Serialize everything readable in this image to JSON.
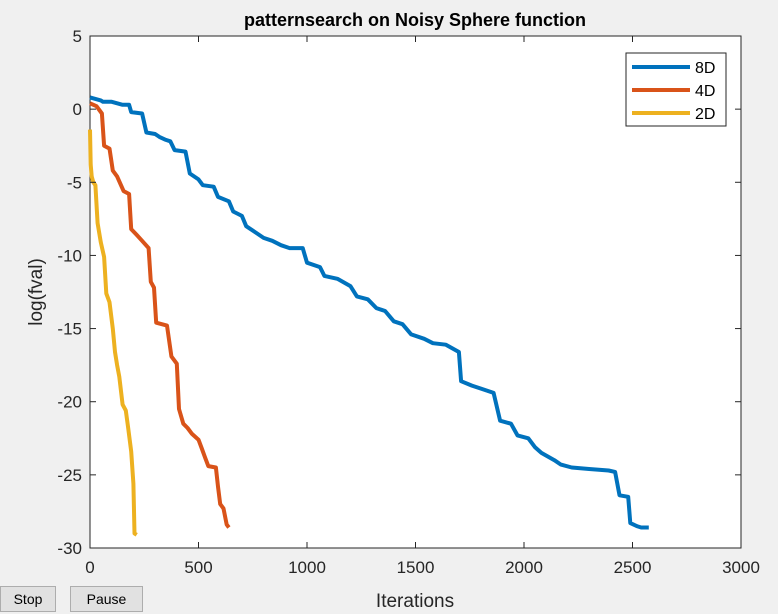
{
  "buttons": {
    "stop_label": "Stop",
    "pause_label": "Pause"
  },
  "chart_data": {
    "type": "line",
    "title": "patternsearch on Noisy Sphere function",
    "xlabel": "Iterations",
    "ylabel": "log(fval)",
    "xlim": [
      0,
      3000
    ],
    "ylim": [
      -30,
      5
    ],
    "xticks": [
      0,
      500,
      1000,
      1500,
      2000,
      2500,
      3000
    ],
    "yticks": [
      -30,
      -25,
      -20,
      -15,
      -10,
      -5,
      0,
      5
    ],
    "xtick_labels": [
      "0",
      "500",
      "1000",
      "1500",
      "2000",
      "2500",
      "3000"
    ],
    "ytick_labels": [
      "-30",
      "-25",
      "-20",
      "-15",
      "-10",
      "-5",
      "0",
      "5"
    ],
    "grid": false,
    "legend_position": "top-right",
    "series": [
      {
        "name": "8D",
        "color": "#0072bd",
        "points": [
          [
            0,
            0.8
          ],
          [
            50,
            0.6
          ],
          [
            60,
            0.5
          ],
          [
            100,
            0.5
          ],
          [
            150,
            0.3
          ],
          [
            180,
            0.3
          ],
          [
            190,
            -0.2
          ],
          [
            240,
            -0.3
          ],
          [
            260,
            -1.6
          ],
          [
            300,
            -1.7
          ],
          [
            320,
            -1.9
          ],
          [
            350,
            -2.1
          ],
          [
            370,
            -2.2
          ],
          [
            390,
            -2.8
          ],
          [
            440,
            -2.9
          ],
          [
            460,
            -4.4
          ],
          [
            500,
            -4.8
          ],
          [
            520,
            -5.2
          ],
          [
            570,
            -5.3
          ],
          [
            590,
            -6.0
          ],
          [
            640,
            -6.3
          ],
          [
            660,
            -7.0
          ],
          [
            700,
            -7.3
          ],
          [
            720,
            -8.0
          ],
          [
            760,
            -8.4
          ],
          [
            800,
            -8.8
          ],
          [
            840,
            -9.0
          ],
          [
            880,
            -9.3
          ],
          [
            920,
            -9.5
          ],
          [
            980,
            -9.5
          ],
          [
            1000,
            -10.5
          ],
          [
            1060,
            -10.8
          ],
          [
            1080,
            -11.4
          ],
          [
            1140,
            -11.6
          ],
          [
            1200,
            -12.1
          ],
          [
            1230,
            -12.8
          ],
          [
            1280,
            -13.0
          ],
          [
            1320,
            -13.6
          ],
          [
            1360,
            -13.8
          ],
          [
            1400,
            -14.5
          ],
          [
            1440,
            -14.7
          ],
          [
            1480,
            -15.4
          ],
          [
            1540,
            -15.7
          ],
          [
            1580,
            -16.0
          ],
          [
            1640,
            -16.1
          ],
          [
            1700,
            -16.6
          ],
          [
            1710,
            -18.6
          ],
          [
            1760,
            -18.9
          ],
          [
            1800,
            -19.1
          ],
          [
            1860,
            -19.4
          ],
          [
            1890,
            -21.3
          ],
          [
            1940,
            -21.5
          ],
          [
            1970,
            -22.3
          ],
          [
            2020,
            -22.5
          ],
          [
            2050,
            -23.1
          ],
          [
            2080,
            -23.5
          ],
          [
            2140,
            -24.0
          ],
          [
            2170,
            -24.3
          ],
          [
            2220,
            -24.5
          ],
          [
            2300,
            -24.6
          ],
          [
            2390,
            -24.7
          ],
          [
            2420,
            -24.8
          ],
          [
            2440,
            -26.4
          ],
          [
            2480,
            -26.5
          ],
          [
            2490,
            -28.3
          ],
          [
            2520,
            -28.5
          ],
          [
            2540,
            -28.6
          ],
          [
            2575,
            -28.6
          ]
        ]
      },
      {
        "name": "4D",
        "color": "#d95319",
        "points": [
          [
            0,
            0.4
          ],
          [
            30,
            0.2
          ],
          [
            55,
            -0.3
          ],
          [
            65,
            -2.5
          ],
          [
            90,
            -2.7
          ],
          [
            105,
            -4.2
          ],
          [
            125,
            -4.6
          ],
          [
            155,
            -5.6
          ],
          [
            180,
            -5.8
          ],
          [
            190,
            -8.2
          ],
          [
            215,
            -8.6
          ],
          [
            240,
            -9.0
          ],
          [
            270,
            -9.5
          ],
          [
            280,
            -11.8
          ],
          [
            295,
            -12.2
          ],
          [
            305,
            -14.6
          ],
          [
            355,
            -14.8
          ],
          [
            375,
            -16.9
          ],
          [
            400,
            -17.4
          ],
          [
            410,
            -20.5
          ],
          [
            430,
            -21.5
          ],
          [
            450,
            -21.8
          ],
          [
            470,
            -22.2
          ],
          [
            500,
            -22.6
          ],
          [
            515,
            -23.2
          ],
          [
            530,
            -23.8
          ],
          [
            545,
            -24.4
          ],
          [
            580,
            -24.5
          ],
          [
            590,
            -25.8
          ],
          [
            600,
            -27.0
          ],
          [
            615,
            -27.3
          ],
          [
            630,
            -28.4
          ],
          [
            640,
            -28.6
          ]
        ]
      },
      {
        "name": "2D",
        "color": "#edb120",
        "points": [
          [
            0,
            -1.4
          ],
          [
            3,
            -3.8
          ],
          [
            8,
            -4.6
          ],
          [
            15,
            -5.0
          ],
          [
            25,
            -5.2
          ],
          [
            35,
            -7.8
          ],
          [
            50,
            -9.1
          ],
          [
            65,
            -10.1
          ],
          [
            75,
            -12.6
          ],
          [
            90,
            -13.2
          ],
          [
            105,
            -15.0
          ],
          [
            115,
            -16.6
          ],
          [
            125,
            -17.5
          ],
          [
            135,
            -18.3
          ],
          [
            150,
            -20.2
          ],
          [
            165,
            -20.6
          ],
          [
            175,
            -21.7
          ],
          [
            190,
            -23.4
          ],
          [
            200,
            -25.6
          ],
          [
            205,
            -29.0
          ],
          [
            215,
            -29.1
          ]
        ]
      }
    ]
  }
}
